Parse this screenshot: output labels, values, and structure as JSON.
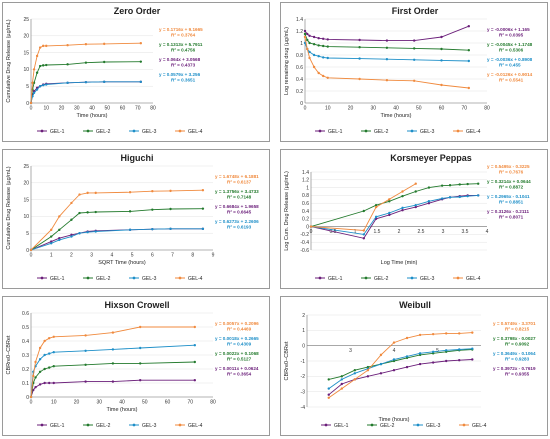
{
  "colors": {
    "GEL-1": "#6b1f7a",
    "GEL-2": "#237a2d",
    "GEL-3": "#1e8fc8",
    "GEL-4": "#f08a3e"
  },
  "chart_data": [
    {
      "id": "zero",
      "title": "Zero Order",
      "type": "line",
      "xlabel": "Time (hours)",
      "ylabel": "Cumulative Drug Release (µg/mL)",
      "xlim": [
        0,
        80
      ],
      "ylim": [
        0,
        25
      ],
      "xticks": [
        0,
        10,
        20,
        30,
        40,
        50,
        60,
        70,
        80
      ],
      "yticks": [
        0,
        5,
        10,
        15,
        20,
        25
      ],
      "legend": [
        "GEL-1",
        "GEL-2",
        "GEL-3",
        "GEL-4"
      ],
      "series": [
        {
          "name": "GEL-1",
          "x": [
            0,
            1,
            2,
            4,
            6,
            8,
            10,
            24,
            36,
            48,
            72
          ],
          "y": [
            0,
            2.5,
            3.5,
            4.5,
            5,
            5.5,
            5.7,
            6,
            6.2,
            6.3,
            6.3
          ]
        },
        {
          "name": "GEL-2",
          "x": [
            0,
            1,
            2,
            4,
            6,
            8,
            10,
            24,
            36,
            48,
            72
          ],
          "y": [
            0,
            4,
            6,
            9,
            11,
            11.2,
            11.3,
            11.5,
            12,
            12.2,
            12.3
          ]
        },
        {
          "name": "GEL-3",
          "x": [
            0,
            1,
            2,
            4,
            6,
            8,
            10,
            24,
            36,
            48,
            72
          ],
          "y": [
            0,
            2,
            3,
            4,
            5,
            5.3,
            5.5,
            6,
            6.2,
            6.3,
            6.3
          ]
        },
        {
          "name": "GEL-4",
          "x": [
            0,
            1,
            2,
            4,
            6,
            8,
            10,
            24,
            36,
            48,
            72
          ],
          "y": [
            0,
            6,
            10,
            14,
            16.5,
            17,
            17,
            17.2,
            17.5,
            17.6,
            17.8
          ]
        }
      ],
      "equations": [
        {
          "series": "GEL-4",
          "eq": "y = 0.1716x + 9.1665",
          "r2": "R² = 0.3764"
        },
        {
          "series": "GEL-2",
          "eq": "y = 0.1313x + 5.7911",
          "r2": "R² = 0.4756"
        },
        {
          "series": "GEL-1",
          "eq": "y = 0.064x + 3.0568",
          "r2": "R² = 0.4373"
        },
        {
          "series": "GEL-3",
          "eq": "y = 0.0579x + 3.256",
          "r2": "R² = 0.3651"
        }
      ]
    },
    {
      "id": "first",
      "title": "First Order",
      "type": "line",
      "xlabel": "Time (hours)",
      "ylabel": "Log remaining drug (µg/mL)",
      "xlim": [
        0,
        80
      ],
      "ylim": [
        0,
        1.4
      ],
      "xticks": [
        0,
        10,
        20,
        30,
        40,
        50,
        60,
        70,
        80
      ],
      "yticks": [
        0,
        0.2,
        0.4,
        0.6,
        0.8,
        1,
        1.2,
        1.4
      ],
      "legend": [
        "GEL-1",
        "GEL-2",
        "GEL-3",
        "GEL-4"
      ],
      "series": [
        {
          "name": "GEL-1",
          "x": [
            0,
            1,
            2,
            4,
            6,
            8,
            10,
            24,
            36,
            48,
            60,
            72
          ],
          "y": [
            1.2,
            1.15,
            1.12,
            1.1,
            1.08,
            1.07,
            1.06,
            1.05,
            1.04,
            1.04,
            1.1,
            1.28
          ]
        },
        {
          "name": "GEL-2",
          "x": [
            0,
            1,
            2,
            4,
            6,
            8,
            10,
            24,
            36,
            48,
            60,
            72
          ],
          "y": [
            1.15,
            1.05,
            1.0,
            0.98,
            0.96,
            0.95,
            0.94,
            0.93,
            0.92,
            0.91,
            0.9,
            0.88
          ]
        },
        {
          "name": "GEL-3",
          "x": [
            0,
            1,
            2,
            4,
            6,
            8,
            10,
            24,
            36,
            48,
            60,
            72
          ],
          "y": [
            1.0,
            0.9,
            0.85,
            0.8,
            0.78,
            0.76,
            0.75,
            0.74,
            0.73,
            0.72,
            0.71,
            0.7
          ]
        },
        {
          "name": "GEL-4",
          "x": [
            0,
            1,
            2,
            4,
            6,
            8,
            10,
            24,
            36,
            48,
            60,
            72
          ],
          "y": [
            1.1,
            0.9,
            0.75,
            0.6,
            0.5,
            0.45,
            0.42,
            0.4,
            0.38,
            0.37,
            0.3,
            0.25
          ]
        }
      ],
      "equations": [
        {
          "series": "GEL-1",
          "eq": "y = -0.0006x + 1.165",
          "r2": "R² = 0.0395"
        },
        {
          "series": "GEL-2",
          "eq": "y = -0.0045x + 1.1748",
          "r2": "R² = 0.5306"
        },
        {
          "series": "GEL-3",
          "eq": "y = -0.0036x + 0.8908",
          "r2": "R² = 0.455"
        },
        {
          "series": "GEL-4",
          "eq": "y = -0.0126x + 0.9014",
          "r2": "R² = 0.5541"
        }
      ]
    },
    {
      "id": "higuchi",
      "title": "Higuchi",
      "type": "line",
      "xlabel": "SQRT Time (hours)",
      "ylabel": "Cumulative Drug Release (µg/mL)",
      "xlim": [
        0,
        9
      ],
      "ylim": [
        0,
        25
      ],
      "xticks": [
        0,
        1,
        2,
        3,
        4,
        5,
        6,
        7,
        8,
        9
      ],
      "yticks": [
        0,
        5,
        10,
        15,
        20,
        25
      ],
      "legend": [
        "GEL-1",
        "GEL-2",
        "GEL-3",
        "GEL-4"
      ],
      "series": [
        {
          "name": "GEL-1",
          "x": [
            0,
            1,
            1.4,
            2,
            2.4,
            2.8,
            3.2,
            4.9,
            6,
            6.9,
            8.5
          ],
          "y": [
            0,
            2.5,
            3.5,
            4.5,
            5,
            5.5,
            5.7,
            6,
            6.2,
            6.3,
            6.3
          ]
        },
        {
          "name": "GEL-2",
          "x": [
            0,
            1,
            1.4,
            2,
            2.4,
            2.8,
            3.2,
            4.9,
            6,
            6.9,
            8.5
          ],
          "y": [
            0,
            4,
            6,
            9,
            11,
            11.2,
            11.3,
            11.5,
            12,
            12.2,
            12.3
          ]
        },
        {
          "name": "GEL-3",
          "x": [
            0,
            1,
            1.4,
            2,
            2.4,
            2.8,
            3.2,
            4.9,
            6,
            6.9,
            8.5
          ],
          "y": [
            0,
            2,
            3,
            4,
            5,
            5.3,
            5.5,
            6,
            6.2,
            6.3,
            6.3
          ]
        },
        {
          "name": "GEL-4",
          "x": [
            0,
            1,
            1.4,
            2,
            2.4,
            2.8,
            3.2,
            4.9,
            6,
            6.9,
            8.5
          ],
          "y": [
            0,
            6,
            10,
            14,
            16.5,
            17,
            17,
            17.2,
            17.5,
            17.6,
            17.8
          ]
        }
      ],
      "equations": [
        {
          "series": "GEL-4",
          "eq": "y = 1.6748x + 6.1881",
          "r2": "R² = 0.6137"
        },
        {
          "series": "GEL-2",
          "eq": "y = 1.3756x + 3.4733",
          "r2": "R² = 0.7148"
        },
        {
          "series": "GEL-1",
          "eq": "y = 0.6684x + 1.9658",
          "r2": "R² = 0.6645"
        },
        {
          "series": "GEL-3",
          "eq": "y = 0.6273x + 2.2606",
          "r2": "R² = 0.6193"
        }
      ]
    },
    {
      "id": "korsmeyer",
      "title": "Korsmeyer Peppas",
      "type": "line",
      "xlabel": "Log Time (min)",
      "ylabel": "Log Cum. Drug Release (µg/mL)",
      "xlim": [
        0,
        4
      ],
      "ylim": [
        -0.6,
        1.4
      ],
      "xticks": [
        0,
        0.5,
        1,
        1.5,
        2,
        2.5,
        3,
        3.5,
        4
      ],
      "yticks": [
        -0.6,
        -0.4,
        -0.2,
        0,
        0.2,
        0.4,
        0.6,
        0.8,
        1,
        1.2,
        1.4
      ],
      "legend": [
        "GEL-1",
        "GEL-2",
        "GEL-3",
        "GEL-4"
      ],
      "series": [
        {
          "name": "GEL-1",
          "x": [
            0,
            1.2,
            1.48,
            1.78,
            2.08,
            2.38,
            2.68,
            2.98,
            3.16,
            3.38,
            3.56,
            3.8
          ],
          "y": [
            0,
            -0.3,
            0.2,
            0.3,
            0.42,
            0.5,
            0.6,
            0.7,
            0.75,
            0.78,
            0.8,
            0.8
          ]
        },
        {
          "name": "GEL-2",
          "x": [
            0,
            1.2,
            1.48,
            1.78,
            2.08,
            2.38,
            2.68,
            2.98,
            3.16,
            3.38,
            3.56,
            3.8
          ],
          "y": [
            0,
            0.4,
            0.55,
            0.65,
            0.78,
            0.9,
            1.0,
            1.05,
            1.06,
            1.08,
            1.09,
            1.1
          ]
        },
        {
          "name": "GEL-3",
          "x": [
            0,
            1.2,
            1.48,
            1.78,
            2.08,
            2.38,
            2.68,
            2.98,
            3.16,
            3.38,
            3.56,
            3.8
          ],
          "y": [
            0,
            -0.2,
            0.25,
            0.35,
            0.48,
            0.55,
            0.65,
            0.72,
            0.75,
            0.76,
            0.78,
            0.8
          ]
        },
        {
          "name": "GEL-4",
          "x": [
            0,
            1.2,
            1.48,
            1.78,
            2.08,
            2.38
          ],
          "y": [
            0,
            -0.1,
            0.5,
            0.7,
            0.9,
            1.1
          ]
        }
      ],
      "equations": [
        {
          "series": "GEL-4",
          "eq": "y = 0.5495x - 0.3225",
          "r2": "R² = 0.7676"
        },
        {
          "series": "GEL-2",
          "eq": "y = 0.3214x + 0.0644",
          "r2": "R² = 0.8872"
        },
        {
          "series": "GEL-3",
          "eq": "y = 0.2965x - 0.1041",
          "r2": "R² = 0.8851"
        },
        {
          "series": "GEL-1",
          "eq": "y = 0.3126x - 0.2111",
          "r2": "R² = 0.8071"
        }
      ]
    },
    {
      "id": "hixson",
      "title": "Hixson Crowell",
      "type": "line",
      "xlabel": "Time (hours)",
      "ylabel": "CBRre0−CBRet",
      "xlim": [
        0,
        80
      ],
      "ylim": [
        0,
        0.6
      ],
      "xticks": [
        0,
        10,
        20,
        30,
        40,
        50,
        60,
        70,
        80
      ],
      "yticks": [
        0,
        0.1,
        0.2,
        0.3,
        0.4,
        0.5,
        0.6
      ],
      "legend": [
        "GEL-1",
        "GEL-2",
        "GEL-3",
        "GEL-4"
      ],
      "series": [
        {
          "name": "GEL-1",
          "x": [
            0,
            1,
            2,
            4,
            6,
            8,
            10,
            24,
            36,
            48,
            72
          ],
          "y": [
            0,
            0.05,
            0.07,
            0.09,
            0.1,
            0.1,
            0.1,
            0.11,
            0.11,
            0.12,
            0.12
          ]
        },
        {
          "name": "GEL-2",
          "x": [
            0,
            1,
            2,
            4,
            6,
            8,
            10,
            24,
            36,
            48,
            72
          ],
          "y": [
            0,
            0.1,
            0.14,
            0.18,
            0.2,
            0.21,
            0.22,
            0.23,
            0.24,
            0.24,
            0.25
          ]
        },
        {
          "name": "GEL-3",
          "x": [
            0,
            1,
            2,
            4,
            6,
            8,
            10,
            24,
            36,
            48,
            72
          ],
          "y": [
            0,
            0.18,
            0.22,
            0.27,
            0.3,
            0.31,
            0.32,
            0.33,
            0.34,
            0.35,
            0.37
          ]
        },
        {
          "name": "GEL-4",
          "x": [
            0,
            1,
            2,
            4,
            6,
            8,
            10,
            24,
            36,
            48,
            72
          ],
          "y": [
            0,
            0.15,
            0.25,
            0.35,
            0.4,
            0.42,
            0.43,
            0.44,
            0.46,
            0.5,
            0.5
          ]
        }
      ],
      "equations": [
        {
          "series": "GEL-4",
          "eq": "y = 0.0057x + 0.2096",
          "r2": "R² = 0.4469"
        },
        {
          "series": "GEL-3",
          "eq": "y = 0.0018x + 0.2665",
          "r2": "R² = 0.4309"
        },
        {
          "series": "GEL-2",
          "eq": "y = 0.0022x + 0.1068",
          "r2": "R² = 0.5127"
        },
        {
          "series": "GEL-1",
          "eq": "y = 0.0011x + 0.0624",
          "r2": "R² = 0.3654"
        }
      ]
    },
    {
      "id": "weibull",
      "title": "Weibull",
      "type": "line",
      "xlabel": "Time (hours)",
      "ylabel": "CBRre0−CBRet",
      "xlim": [
        2,
        6
      ],
      "ylim": [
        -4,
        2
      ],
      "xticks": [
        3,
        4,
        5
      ],
      "yticks": [
        -4,
        -3,
        -2,
        -1,
        0,
        1,
        2
      ],
      "legend": [
        "GEL-1",
        "GEL-2",
        "GEL-3",
        "GEL-4"
      ],
      "series": [
        {
          "name": "GEL-1",
          "x": [
            2.5,
            2.8,
            3.1,
            3.4,
            3.7,
            4.0,
            4.3,
            4.6,
            4.9,
            5.2,
            5.5,
            5.8
          ],
          "y": [
            -3.2,
            -2.5,
            -2.2,
            -2.0,
            -1.8,
            -1.6,
            -1.4,
            -1.2,
            -1.1,
            -1.0,
            -0.95,
            -0.9
          ]
        },
        {
          "name": "GEL-2",
          "x": [
            2.5,
            2.8,
            3.1,
            3.4,
            3.7,
            4.0,
            4.3,
            4.6,
            4.9,
            5.2,
            5.5,
            5.8
          ],
          "y": [
            -2.2,
            -2.0,
            -1.6,
            -1.4,
            -1.2,
            -1.0,
            -0.8,
            -0.6,
            -0.5,
            -0.4,
            -0.3,
            -0.25
          ]
        },
        {
          "name": "GEL-3",
          "x": [
            2.5,
            2.8,
            3.1,
            3.4,
            3.7,
            4.0,
            4.3,
            4.6,
            4.9,
            5.2,
            5.5,
            5.8
          ],
          "y": [
            -2.8,
            -2.2,
            -1.8,
            -1.5,
            -1.2,
            -0.9,
            -0.7,
            -0.5,
            -0.4,
            -0.3,
            -0.25,
            -0.2
          ]
        },
        {
          "name": "GEL-4",
          "x": [
            2.5,
            2.8,
            3.1,
            3.4,
            3.7,
            4.0,
            4.3,
            4.6,
            4.9,
            5.2,
            5.5,
            5.8
          ],
          "y": [
            -3.4,
            -2.8,
            -2.2,
            -1.6,
            -0.6,
            0.2,
            0.5,
            0.7,
            0.75,
            0.8,
            0.8,
            0.85
          ]
        }
      ],
      "equations": [
        {
          "series": "GEL-4",
          "eq": "y = 0.5749x - 3.3701",
          "r2": "R² = 0.8215"
        },
        {
          "series": "GEL-2",
          "eq": "y = 0.3798x - 0.0027",
          "r2": "R² = 0.9092"
        },
        {
          "series": "GEL-3",
          "eq": "y = 0.3649x - 0.1064",
          "r2": "R² = 0.9283"
        },
        {
          "series": "GEL-1",
          "eq": "y = 0.3972x - 0.7619",
          "r2": "R² = 0.9355"
        }
      ]
    }
  ]
}
